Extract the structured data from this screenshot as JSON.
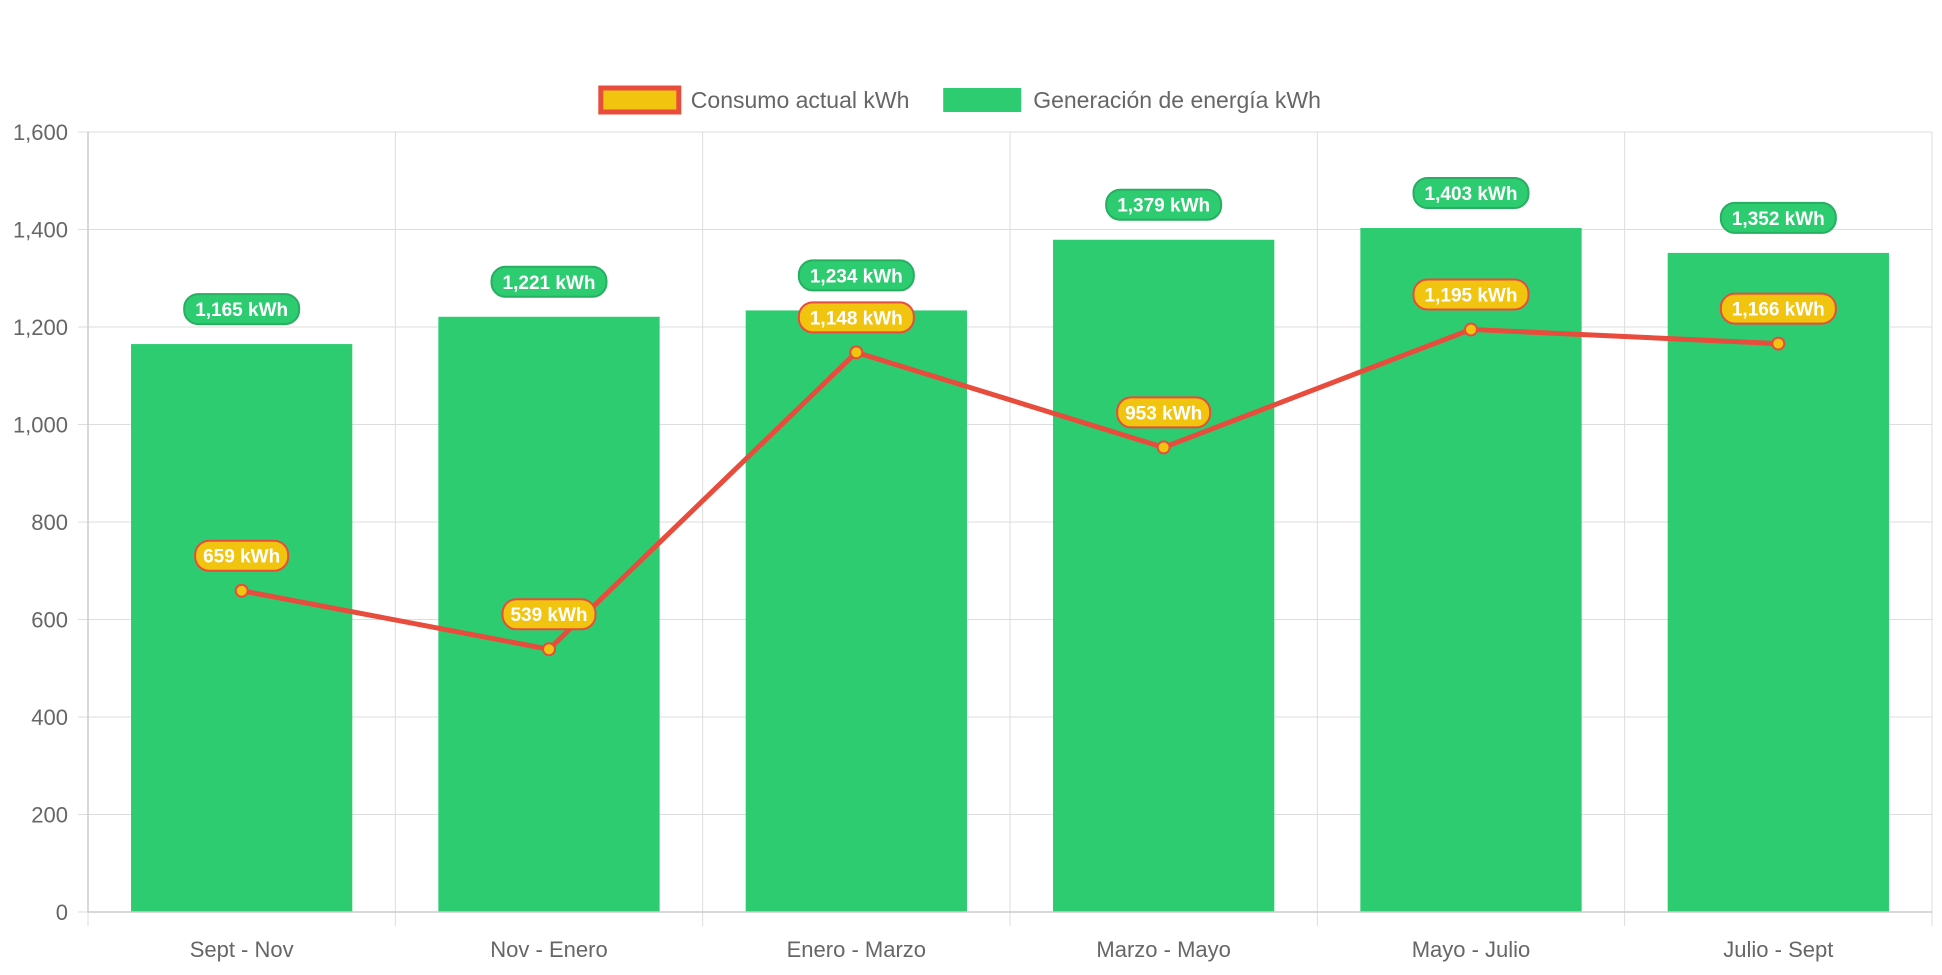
{
  "chart_data": {
    "type": "bar",
    "categories": [
      "Sept - Nov",
      "Nov - Enero",
      "Enero - Marzo",
      "Marzo - Mayo",
      "Mayo - Julio",
      "Julio - Sept"
    ],
    "series": [
      {
        "name": "Consumo actual kWh",
        "type": "line",
        "values": [
          659,
          539,
          1148,
          953,
          1195,
          1166
        ],
        "labels": [
          "659 kWh",
          "539 kWh",
          "1,148 kWh",
          "953 kWh",
          "1,195 kWh",
          "1,166 kWh"
        ],
        "line_color": "#e74c3c",
        "fill_color": "#f1c40f"
      },
      {
        "name": "Generación de energía kWh",
        "type": "bar",
        "values": [
          1165,
          1221,
          1234,
          1379,
          1403,
          1352
        ],
        "labels": [
          "1,165 kWh",
          "1,221 kWh",
          "1,234 kWh",
          "1,379 kWh",
          "1,403 kWh",
          "1,352 kWh"
        ],
        "color": "#2ecc71",
        "label_border_color": "#27ae60"
      }
    ],
    "ylim": [
      0,
      1600
    ],
    "y_ticks": [
      0,
      200,
      400,
      600,
      800,
      1000,
      1200,
      1400,
      1600
    ],
    "y_tick_labels": [
      "0",
      "200",
      "400",
      "600",
      "800",
      "1,000",
      "1,200",
      "1,400",
      "1,600"
    ],
    "grid": true,
    "legend_position": "top",
    "title": "",
    "xlabel": "",
    "ylabel": ""
  }
}
